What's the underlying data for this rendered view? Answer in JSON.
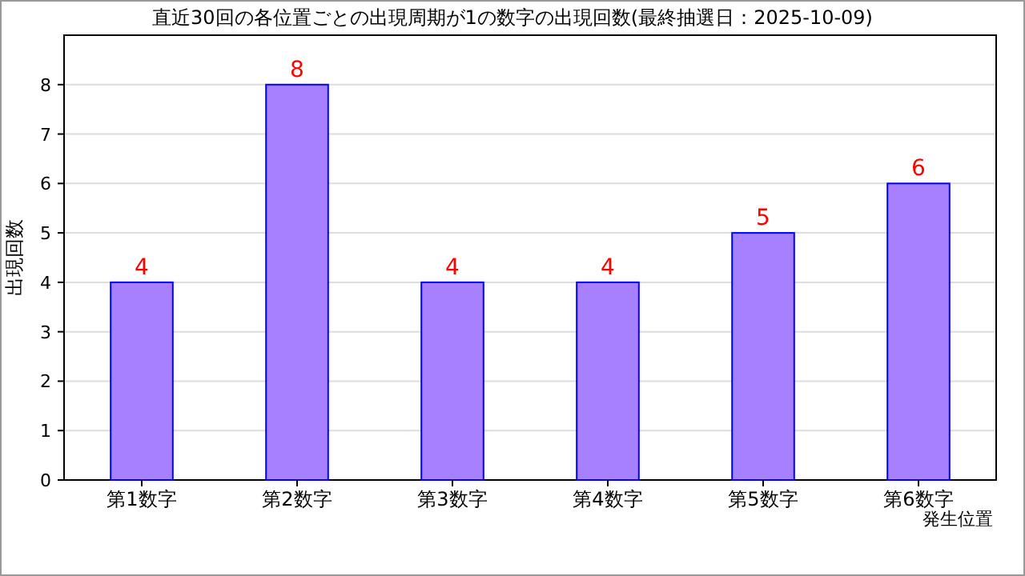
{
  "chart_data": {
    "type": "bar",
    "title": "直近30回の各位置ごとの出現周期が1の数字の出現回数(最終抽選日：2025-10-09)",
    "xlabel": "発生位置",
    "ylabel": "出現回数",
    "categories": [
      "第1数字",
      "第2数字",
      "第3数字",
      "第4数字",
      "第5数字",
      "第6数字"
    ],
    "values": [
      4,
      8,
      4,
      4,
      5,
      6
    ],
    "color": "#a680ff",
    "ylim": [
      0,
      9
    ],
    "yticks": [
      0,
      1,
      2,
      3,
      4,
      5,
      6,
      7,
      8
    ],
    "grid": "y",
    "data_labels": true
  }
}
